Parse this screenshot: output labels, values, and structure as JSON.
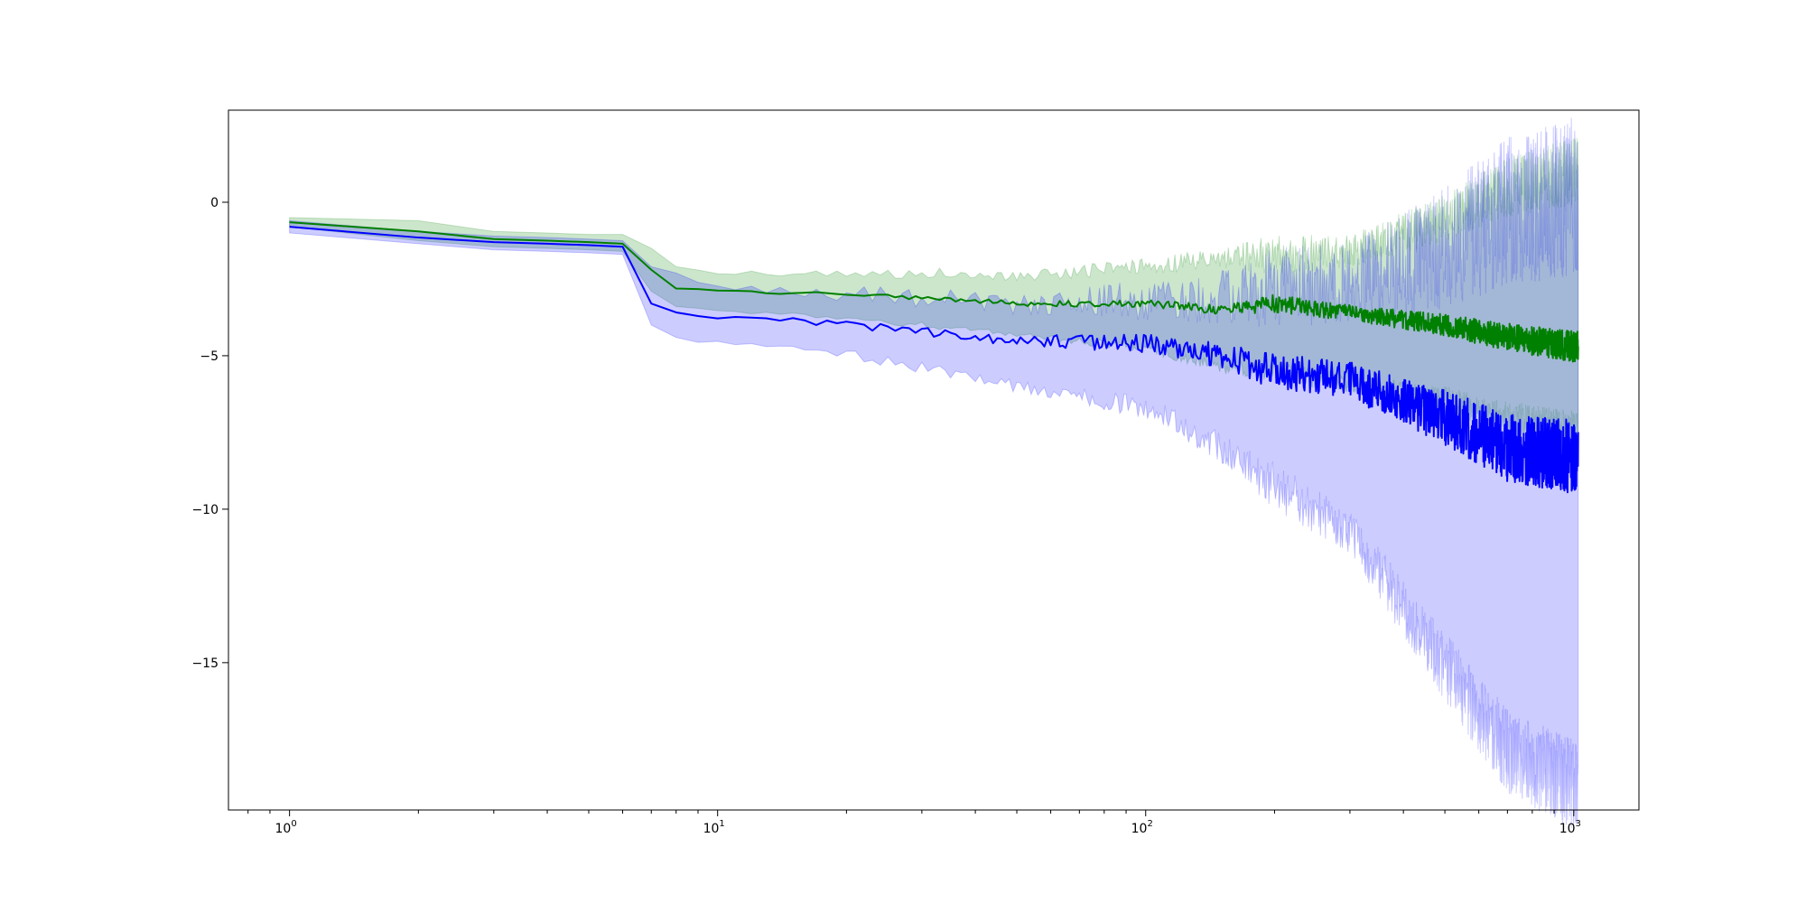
{
  "chart_data": {
    "type": "line",
    "title": "",
    "xlabel": "",
    "ylabel": "",
    "xscale": "log",
    "xlim": [
      0.72,
      1420
    ],
    "ylim": [
      -19.8,
      3.0
    ],
    "grid": false,
    "legend": "none",
    "x_ticks": [
      {
        "value": 1,
        "base": "10",
        "exp": "0"
      },
      {
        "value": 10,
        "base": "10",
        "exp": "1"
      },
      {
        "value": 100,
        "base": "10",
        "exp": "2"
      },
      {
        "value": 1000,
        "base": "10",
        "exp": "3"
      }
    ],
    "y_ticks": [
      {
        "value": 0,
        "label": "0"
      },
      {
        "value": -5,
        "label": "−5"
      },
      {
        "value": -10,
        "label": "−10"
      },
      {
        "value": -15,
        "label": "−15"
      }
    ],
    "series": [
      {
        "color": "#008000",
        "band_color": "#008000",
        "x": [
          1,
          2,
          3,
          4,
          5,
          6,
          7,
          8,
          10,
          15,
          20,
          30,
          50,
          100,
          150,
          200,
          300,
          500,
          700,
          1000
        ],
        "mean": [
          -0.65,
          -0.95,
          -1.2,
          -1.25,
          -1.3,
          -1.35,
          -2.2,
          -2.8,
          -2.9,
          -2.95,
          -3.0,
          -3.1,
          -3.3,
          -3.3,
          -3.5,
          -3.3,
          -3.6,
          -4.0,
          -4.4,
          -4.7
        ],
        "amplitude": [
          0,
          0,
          0,
          0,
          0,
          0,
          0,
          0.02,
          0.04,
          0.05,
          0.06,
          0.08,
          0.08,
          0.12,
          0.15,
          0.3,
          0.25,
          0.35,
          0.45,
          0.5
        ],
        "upper": [
          -0.5,
          -0.6,
          -0.95,
          -1.0,
          -1.05,
          -1.05,
          -1.5,
          -2.1,
          -2.3,
          -2.35,
          -2.35,
          -2.3,
          -2.4,
          -2.1,
          -1.8,
          -1.7,
          -1.6,
          -0.5,
          0.5,
          1.0
        ],
        "lower": [
          -0.8,
          -1.25,
          -1.45,
          -1.5,
          -1.55,
          -1.6,
          -2.9,
          -3.4,
          -3.5,
          -3.6,
          -3.7,
          -3.9,
          -4.2,
          -4.6,
          -5.2,
          -5.1,
          -5.6,
          -6.0,
          -6.5,
          -6.8
        ]
      },
      {
        "color": "#0000ff",
        "band_color": "#0000ff",
        "x": [
          1,
          2,
          3,
          4,
          5,
          6,
          7,
          8,
          10,
          15,
          20,
          30,
          50,
          100,
          150,
          200,
          300,
          500,
          700,
          1000
        ],
        "mean": [
          -0.8,
          -1.15,
          -1.3,
          -1.35,
          -1.4,
          -1.45,
          -3.3,
          -3.6,
          -3.75,
          -3.85,
          -4.0,
          -4.2,
          -4.5,
          -4.6,
          -5.0,
          -5.5,
          -5.8,
          -7.0,
          -8.0,
          -8.3
        ],
        "amplitude": [
          0,
          0,
          0,
          0,
          0,
          0,
          0,
          0.03,
          0.06,
          0.08,
          0.12,
          0.15,
          0.18,
          0.3,
          0.4,
          0.6,
          0.6,
          0.9,
          1.1,
          1.2
        ],
        "upper": [
          -0.6,
          -0.95,
          -1.1,
          -1.15,
          -1.2,
          -1.25,
          -2.1,
          -2.3,
          -2.7,
          -2.9,
          -3.0,
          -3.1,
          -3.3,
          -3.2,
          -3.1,
          -2.8,
          -2.6,
          -1.5,
          -0.3,
          0.2
        ],
        "lower": [
          -1.0,
          -1.35,
          -1.55,
          -1.6,
          -1.65,
          -1.7,
          -4.0,
          -4.4,
          -4.5,
          -4.6,
          -4.8,
          -5.2,
          -5.8,
          -6.3,
          -7.5,
          -8.5,
          -10.0,
          -14.0,
          -16.5,
          -17.5
        ]
      }
    ],
    "n_points_per_series": 1024,
    "band_opacity": 0.2
  }
}
